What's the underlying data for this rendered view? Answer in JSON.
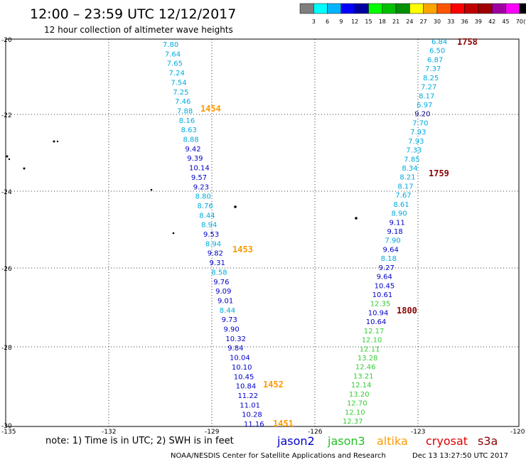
{
  "header": {
    "title": "12:00 – 23:59 UTC 12/12/2017",
    "subtitle": "12 hour collection of altimeter wave heights"
  },
  "legend": {
    "ticks": [
      "3",
      "6",
      "9",
      "12",
      "15",
      "18",
      "21",
      "24",
      "27",
      "30",
      "33",
      "36",
      "39",
      "42",
      "45",
      "70",
      "(ft)"
    ],
    "colors": [
      "#7f7f7f",
      "#00ffff",
      "#00b4ff",
      "#0000ff",
      "#0000a0",
      "#00ff00",
      "#00c000",
      "#009000",
      "#ffff00",
      "#ffa500",
      "#ff5500",
      "#ff0000",
      "#c00000",
      "#a00000",
      "#a000a0",
      "#ff00ff",
      "#000000"
    ]
  },
  "axes": {
    "lat_labels": [
      "-20",
      "-22",
      "-24",
      "-26",
      "-28",
      "-30"
    ],
    "lon_labels": [
      "-135",
      "-132",
      "-129",
      "-126",
      "-123",
      "-120"
    ]
  },
  "note": "note: 1) Time is in UTC; 2) SWH is in feet",
  "satellites": [
    {
      "name": "jason2",
      "color": "#0000c8"
    },
    {
      "name": "jason3",
      "color": "#22c122"
    },
    {
      "name": "altika",
      "color": "#ff9900"
    },
    {
      "name": "cryosat",
      "color": "#e00000"
    },
    {
      "name": "s3a",
      "color": "#8b0000"
    }
  ],
  "footer": {
    "credit": "NOAA/NESDIS Center for Satellite Applications and Research",
    "timestamp": "Dec 13 13:27:50 UTC 2017"
  },
  "track_colors": {
    "cyan": "#00aadd",
    "blue": "#0000c8",
    "green": "#33cc33",
    "dkblue": "#000080",
    "orange": "#ff9900",
    "maroon": "#8b0000"
  },
  "tracks": [
    {
      "name": "west-track",
      "points": [
        {
          "v": "7.80",
          "c": "cyan"
        },
        {
          "v": "7.64",
          "c": "cyan"
        },
        {
          "v": "7.65",
          "c": "cyan"
        },
        {
          "v": "7.24",
          "c": "cyan"
        },
        {
          "v": "7.54",
          "c": "cyan"
        },
        {
          "v": "7.25",
          "c": "cyan"
        },
        {
          "v": "7.46",
          "c": "cyan"
        },
        {
          "v": "7.88",
          "c": "cyan"
        },
        {
          "v": "8.16",
          "c": "cyan"
        },
        {
          "v": "8.63",
          "c": "cyan"
        },
        {
          "v": "8.88",
          "c": "cyan"
        },
        {
          "v": "9.42",
          "c": "blue"
        },
        {
          "v": "9.39",
          "c": "blue"
        },
        {
          "v": "10.14",
          "c": "blue"
        },
        {
          "v": "9.57",
          "c": "blue"
        },
        {
          "v": "9.23",
          "c": "blue"
        },
        {
          "v": "8.80",
          "c": "cyan"
        },
        {
          "v": "8.76",
          "c": "cyan"
        },
        {
          "v": "8.44",
          "c": "cyan"
        },
        {
          "v": "8.94",
          "c": "cyan"
        },
        {
          "v": "9.53",
          "c": "blue"
        },
        {
          "v": "8.94",
          "c": "cyan"
        },
        {
          "v": "9.82",
          "c": "blue"
        },
        {
          "v": "9.31",
          "c": "blue"
        },
        {
          "v": "8.58",
          "c": "cyan"
        },
        {
          "v": "9.76",
          "c": "blue"
        },
        {
          "v": "9.09",
          "c": "blue"
        },
        {
          "v": "9.01",
          "c": "blue"
        },
        {
          "v": "8.44",
          "c": "cyan"
        },
        {
          "v": "9.73",
          "c": "blue"
        },
        {
          "v": "9.90",
          "c": "blue"
        },
        {
          "v": "10.32",
          "c": "blue"
        },
        {
          "v": "9.84",
          "c": "blue"
        },
        {
          "v": "10.04",
          "c": "blue"
        },
        {
          "v": "10.10",
          "c": "blue"
        },
        {
          "v": "10.45",
          "c": "blue"
        },
        {
          "v": "10.84",
          "c": "blue"
        },
        {
          "v": "11.22",
          "c": "blue"
        },
        {
          "v": "11.01",
          "c": "blue"
        },
        {
          "v": "10.28",
          "c": "blue"
        },
        {
          "v": "11.16",
          "c": "blue"
        }
      ]
    },
    {
      "name": "east-track",
      "points": [
        {
          "v": "6.84",
          "c": "cyan"
        },
        {
          "v": "6.50",
          "c": "cyan"
        },
        {
          "v": "6.87",
          "c": "cyan"
        },
        {
          "v": "7.37",
          "c": "cyan"
        },
        {
          "v": "8.25",
          "c": "cyan"
        },
        {
          "v": "7.27",
          "c": "cyan"
        },
        {
          "v": "8.17",
          "c": "cyan"
        },
        {
          "v": "6.97",
          "c": "cyan"
        },
        {
          "v": "9.20",
          "c": "dkblue"
        },
        {
          "v": "7.70",
          "c": "cyan"
        },
        {
          "v": "7.93",
          "c": "cyan"
        },
        {
          "v": "7.93",
          "c": "cyan"
        },
        {
          "v": "7.33",
          "c": "cyan"
        },
        {
          "v": "7.85",
          "c": "cyan"
        },
        {
          "v": "8.34",
          "c": "cyan"
        },
        {
          "v": "8.21",
          "c": "cyan"
        },
        {
          "v": "8.17",
          "c": "cyan"
        },
        {
          "v": "7.67",
          "c": "cyan"
        },
        {
          "v": "8.61",
          "c": "cyan"
        },
        {
          "v": "8.90",
          "c": "cyan"
        },
        {
          "v": "9.11",
          "c": "blue"
        },
        {
          "v": "9.18",
          "c": "blue"
        },
        {
          "v": "7.90",
          "c": "cyan"
        },
        {
          "v": "9.64",
          "c": "blue"
        },
        {
          "v": "8.18",
          "c": "cyan"
        },
        {
          "v": "9.27",
          "c": "blue"
        },
        {
          "v": "9.64",
          "c": "blue"
        },
        {
          "v": "10.45",
          "c": "blue"
        },
        {
          "v": "10.61",
          "c": "blue"
        },
        {
          "v": "12.35",
          "c": "green"
        },
        {
          "v": "10.94",
          "c": "blue"
        },
        {
          "v": "10.64",
          "c": "blue"
        },
        {
          "v": "12.17",
          "c": "green"
        },
        {
          "v": "12.10",
          "c": "green"
        },
        {
          "v": "12.11",
          "c": "green"
        },
        {
          "v": "13.28",
          "c": "green"
        },
        {
          "v": "12.46",
          "c": "green"
        },
        {
          "v": "13.21",
          "c": "green"
        },
        {
          "v": "12.14",
          "c": "green"
        },
        {
          "v": "13.20",
          "c": "green"
        },
        {
          "v": "12.70",
          "c": "green"
        },
        {
          "v": "12.10",
          "c": "green"
        },
        {
          "v": "12.37",
          "c": "green"
        }
      ]
    }
  ],
  "time_labels": [
    {
      "t": "1758",
      "c": "maroon"
    },
    {
      "t": "1454",
      "c": "orange"
    },
    {
      "t": "1759",
      "c": "maroon"
    },
    {
      "t": "1453",
      "c": "orange"
    },
    {
      "t": "1800",
      "c": "maroon"
    },
    {
      "t": "1452",
      "c": "orange"
    },
    {
      "t": "1451",
      "c": "orange"
    }
  ]
}
